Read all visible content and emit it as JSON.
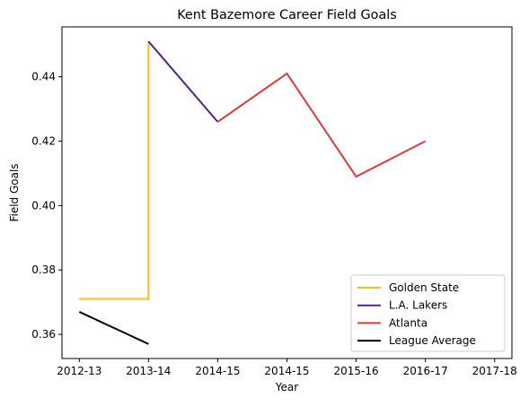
{
  "chart_data": {
    "type": "line",
    "title": "Kent Bazemore Career Field Goals",
    "xlabel": "Year",
    "ylabel": "Field Goals",
    "categories": [
      "2012-13",
      "2013-14",
      "2014-15",
      "2014-15",
      "2015-16",
      "2016-17",
      "2017-18"
    ],
    "xlim": [
      -0.25,
      6.25
    ],
    "ylim": [
      0.3525,
      0.4555
    ],
    "yticks": [
      0.36,
      0.38,
      0.4,
      0.42,
      0.44
    ],
    "ytick_labels": [
      "0.36",
      "0.38",
      "0.40",
      "0.42",
      "0.44"
    ],
    "grid": false,
    "legend_position": "lower right",
    "series": [
      {
        "name": "Golden State",
        "color": "#FDB927",
        "points": [
          {
            "x": 0,
            "y": 0.371
          },
          {
            "x": 1,
            "y": 0.371
          },
          {
            "x": 1,
            "y": 0.451
          }
        ]
      },
      {
        "name": "L.A. Lakers",
        "color": "#552583",
        "points": [
          {
            "x": 1,
            "y": 0.451
          },
          {
            "x": 2,
            "y": 0.426
          }
        ]
      },
      {
        "name": "Atlanta",
        "color": "#E03A3E",
        "points": [
          {
            "x": 2,
            "y": 0.426
          },
          {
            "x": 3,
            "y": 0.441
          },
          {
            "x": 4,
            "y": 0.409
          },
          {
            "x": 5,
            "y": 0.42
          }
        ]
      },
      {
        "name": "League Average",
        "color": "#000000",
        "points": [
          {
            "x": 0,
            "y": 0.367
          },
          {
            "x": 1,
            "y": 0.357
          }
        ]
      }
    ]
  }
}
